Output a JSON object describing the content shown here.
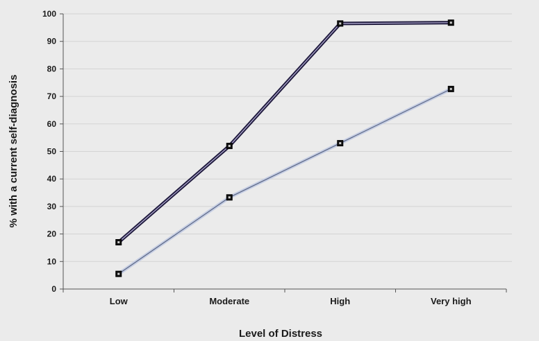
{
  "chart_data": {
    "type": "line",
    "title": "",
    "xlabel": "Level of Distress",
    "ylabel": "% with a current self-diagnosis",
    "categories": [
      "Low",
      "Moderate",
      "High",
      "Very high"
    ],
    "ylim": [
      0,
      100
    ],
    "yticks": [
      0,
      10,
      20,
      30,
      40,
      50,
      60,
      70,
      80,
      90,
      100
    ],
    "grid": true,
    "legend": "none",
    "series": [
      {
        "values": [
          17,
          52,
          96.5,
          96.8
        ],
        "color": "#1f1a3d",
        "outline": "#b8b2d8"
      },
      {
        "values": [
          5.5,
          33.3,
          53,
          72.7
        ],
        "color": "#c5cde3",
        "outline": "#5a6684"
      }
    ]
  }
}
